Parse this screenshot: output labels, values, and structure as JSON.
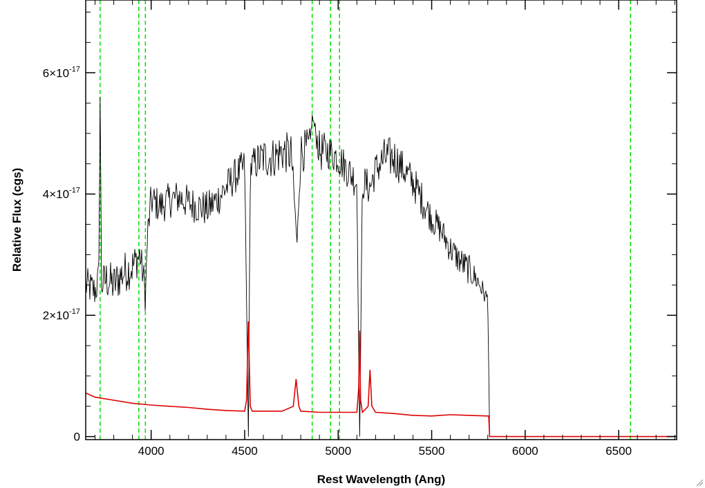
{
  "chart_data": {
    "type": "line",
    "title": "",
    "xlabel": "Rest Wavelength (Ang)",
    "ylabel": "Relative Flux (cgs)",
    "xlim": [
      3650,
      6810
    ],
    "ylim": [
      -5e-19,
      7.2e-17
    ],
    "x_ticks": [
      4000,
      4500,
      5000,
      5500,
      6000,
      6500
    ],
    "x_tick_labels": [
      "4000",
      "4500",
      "5000",
      "5500",
      "6000",
      "6500"
    ],
    "y_ticks": [
      {
        "value": 0,
        "mantissa": "0",
        "exponent": ""
      },
      {
        "value": 2e-17,
        "mantissa": "2×10",
        "exponent": "-17"
      },
      {
        "value": 4e-17,
        "mantissa": "4×10",
        "exponent": "-17"
      },
      {
        "value": 6e-17,
        "mantissa": "6×10",
        "exponent": "-17"
      }
    ],
    "reference_lines_x": [
      3727,
      3934,
      3969,
      4861,
      4959,
      5007,
      6563
    ],
    "reference_line_color": "#00e000",
    "grid": false,
    "series": [
      {
        "color": "#000000",
        "style": "noisy",
        "x": [
          3650,
          3700,
          3720,
          3727,
          3735,
          3760,
          3800,
          3850,
          3900,
          3940,
          3960,
          3970,
          3980,
          4000,
          4050,
          4100,
          4150,
          4200,
          4250,
          4300,
          4350,
          4400,
          4450,
          4500,
          4520,
          4530,
          4550,
          4600,
          4650,
          4700,
          4750,
          4780,
          4800,
          4850,
          4861,
          4900,
          4950,
          5000,
          5050,
          5100,
          5115,
          5130,
          5170,
          5200,
          5250,
          5300,
          5350,
          5400,
          5450,
          5500,
          5550,
          5600,
          5650,
          5700,
          5750,
          5790,
          5800,
          5810,
          5850,
          6000,
          6500,
          6810
        ],
        "y": [
          2.5e-17,
          2.4e-17,
          2.6e-17,
          5.6e-17,
          2.5e-17,
          2.6e-17,
          2.5e-17,
          2.7e-17,
          2.8e-17,
          3e-17,
          2.6e-17,
          2.3e-17,
          3.3e-17,
          3.9e-17,
          3.8e-17,
          3.9e-17,
          3.95e-17,
          3.85e-17,
          3.8e-17,
          3.75e-17,
          3.9e-17,
          4.1e-17,
          4.3e-17,
          4.45e-17,
          0.0,
          4.4e-17,
          4.5e-17,
          4.6e-17,
          4.6e-17,
          4.7e-17,
          4.65e-17,
          3.2e-17,
          4.7e-17,
          4.75e-17,
          5.3e-17,
          4.7e-17,
          4.7e-17,
          4.6e-17,
          4.4e-17,
          4.2e-17,
          0.0,
          4.2e-17,
          4.1e-17,
          4.4e-17,
          4.6e-17,
          4.6e-17,
          4.4e-17,
          4.2e-17,
          3.9e-17,
          3.6e-17,
          3.4e-17,
          3.1e-17,
          2.9e-17,
          2.75e-17,
          2.55e-17,
          2.3e-17,
          2.3e-17,
          0.0,
          0.0,
          0.0,
          0.0,
          0.0
        ],
        "noise": [
          3e-18,
          3e-18,
          3e-18,
          0,
          3e-18,
          3.5e-18,
          3.5e-18,
          3.5e-18,
          3.5e-18,
          3e-18,
          3e-18,
          3e-18,
          3e-18,
          3e-18,
          3e-18,
          3e-18,
          3e-18,
          3e-18,
          3e-18,
          3e-18,
          3e-18,
          3e-18,
          3e-18,
          3e-18,
          0,
          3e-18,
          3e-18,
          3.5e-18,
          3.5e-18,
          3.5e-18,
          3.5e-18,
          0,
          3.5e-18,
          3.5e-18,
          0,
          3.5e-18,
          3e-18,
          3e-18,
          3e-18,
          3e-18,
          0,
          3e-18,
          3e-18,
          3e-18,
          3.5e-18,
          3.5e-18,
          3e-18,
          3e-18,
          3e-18,
          2.5e-18,
          2.5e-18,
          2.5e-18,
          2.5e-18,
          2.5e-18,
          2e-18,
          1.5e-18,
          1e-18,
          0,
          0,
          0,
          0,
          0
        ]
      },
      {
        "color": "#dd0000",
        "style": "error",
        "x": [
          3650,
          3700,
          3800,
          3900,
          4000,
          4100,
          4200,
          4300,
          4400,
          4500,
          4510,
          4520,
          4530,
          4540,
          4600,
          4700,
          4760,
          4775,
          4790,
          4800,
          4900,
          5000,
          5100,
          5110,
          5115,
          5120,
          5130,
          5160,
          5170,
          5180,
          5200,
          5300,
          5400,
          5500,
          5600,
          5700,
          5800,
          5805,
          5810,
          6000,
          6500,
          6810
        ],
        "y": [
          7.2e-18,
          6.5e-18,
          6e-18,
          5.5e-18,
          5.2e-18,
          5e-18,
          4.8e-18,
          4.5e-18,
          4.3e-18,
          4.2e-18,
          6e-18,
          1.9e-17,
          5e-18,
          4.2e-18,
          4.2e-18,
          4.2e-18,
          5e-18,
          9.5e-18,
          5e-18,
          4.2e-18,
          4e-18,
          4e-18,
          4e-18,
          8e-18,
          1.75e-17,
          6e-18,
          4e-18,
          5e-18,
          1.1e-17,
          5e-18,
          4e-18,
          3.8e-18,
          3.5e-18,
          3.4e-18,
          3.6e-18,
          3.5e-18,
          3.4e-18,
          3.4e-18,
          0.0,
          0.0,
          0.0,
          0.0
        ]
      }
    ]
  }
}
